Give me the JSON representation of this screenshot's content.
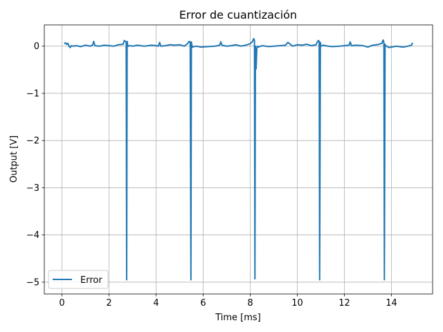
{
  "chart_data": {
    "type": "line",
    "title": "Error de cuantización",
    "xlabel": "Time [ms]",
    "ylabel": "Output [V]",
    "xlim": [
      -0.75,
      15.75
    ],
    "ylim": [
      -5.25,
      0.45
    ],
    "xticks": [
      0,
      2,
      4,
      6,
      8,
      10,
      12,
      14
    ],
    "xtick_labels": [
      "0",
      "2",
      "4",
      "6",
      "8",
      "10",
      "12",
      "14"
    ],
    "yticks": [
      0,
      -1,
      -2,
      -3,
      -4,
      -5
    ],
    "ytick_labels": [
      "0",
      "−1",
      "−2",
      "−3",
      "−4",
      "−5"
    ],
    "grid": true,
    "legend_position": "lower-left",
    "series": [
      {
        "name": "Error",
        "color": "#1f77b4",
        "x": [
          0.1,
          0.15,
          0.2,
          0.25,
          0.3,
          0.35,
          0.4,
          0.5,
          0.6,
          0.8,
          1.0,
          1.2,
          1.3,
          1.35,
          1.4,
          1.6,
          1.8,
          2.0,
          2.2,
          2.4,
          2.6,
          2.65,
          2.7,
          2.73,
          2.75,
          2.77,
          2.8,
          2.9,
          3.0,
          3.2,
          3.5,
          3.8,
          4.0,
          4.1,
          4.15,
          4.2,
          4.4,
          4.6,
          4.8,
          5.0,
          5.2,
          5.35,
          5.4,
          5.45,
          5.48,
          5.5,
          5.52,
          5.55,
          5.7,
          5.9,
          6.2,
          6.5,
          6.7,
          6.75,
          6.8,
          7.0,
          7.2,
          7.4,
          7.6,
          7.8,
          8.0,
          8.1,
          8.15,
          8.18,
          8.2,
          8.22,
          8.25,
          8.28,
          8.3,
          8.35,
          8.5,
          8.8,
          9.0,
          9.5,
          9.6,
          9.8,
          10.0,
          10.2,
          10.4,
          10.6,
          10.8,
          10.85,
          10.9,
          10.93,
          10.95,
          10.98,
          11.0,
          11.1,
          11.3,
          11.5,
          11.8,
          12.0,
          12.2,
          12.25,
          12.3,
          12.5,
          12.8,
          13.0,
          13.2,
          13.4,
          13.6,
          13.62,
          13.65,
          13.68,
          13.7,
          13.73,
          13.75,
          13.9,
          14.2,
          14.5,
          14.7,
          14.85,
          14.9
        ],
        "y": [
          0.05,
          0.07,
          0.04,
          0.06,
          0.0,
          -0.03,
          0.01,
          0.0,
          0.01,
          -0.01,
          0.02,
          0.0,
          0.02,
          0.1,
          0.01,
          0.0,
          0.02,
          0.01,
          0.0,
          0.03,
          0.04,
          0.12,
          0.1,
          0.08,
          -4.95,
          0.1,
          0.0,
          0.01,
          0.0,
          0.02,
          0.0,
          0.02,
          0.01,
          0.0,
          0.08,
          0.0,
          0.01,
          0.03,
          0.02,
          0.03,
          0.0,
          0.06,
          0.1,
          0.09,
          -4.95,
          0.09,
          0.02,
          -0.02,
          0.0,
          -0.02,
          -0.01,
          0.0,
          0.02,
          0.09,
          0.02,
          0.0,
          0.01,
          0.03,
          0.0,
          0.02,
          0.05,
          0.1,
          0.16,
          0.12,
          -4.93,
          0.0,
          -0.48,
          -0.05,
          0.0,
          -0.02,
          0.01,
          -0.01,
          0.0,
          0.02,
          0.08,
          0.0,
          0.03,
          0.02,
          0.04,
          0.01,
          0.03,
          0.09,
          0.12,
          0.1,
          -4.95,
          0.08,
          0.0,
          0.02,
          0.0,
          -0.01,
          0.0,
          0.01,
          0.02,
          0.09,
          0.01,
          0.02,
          0.01,
          -0.02,
          0.02,
          0.03,
          0.06,
          0.1,
          0.13,
          0.08,
          -4.95,
          0.04,
          0.01,
          -0.03,
          0.0,
          -0.02,
          0.0,
          0.02,
          0.07
        ]
      }
    ]
  }
}
